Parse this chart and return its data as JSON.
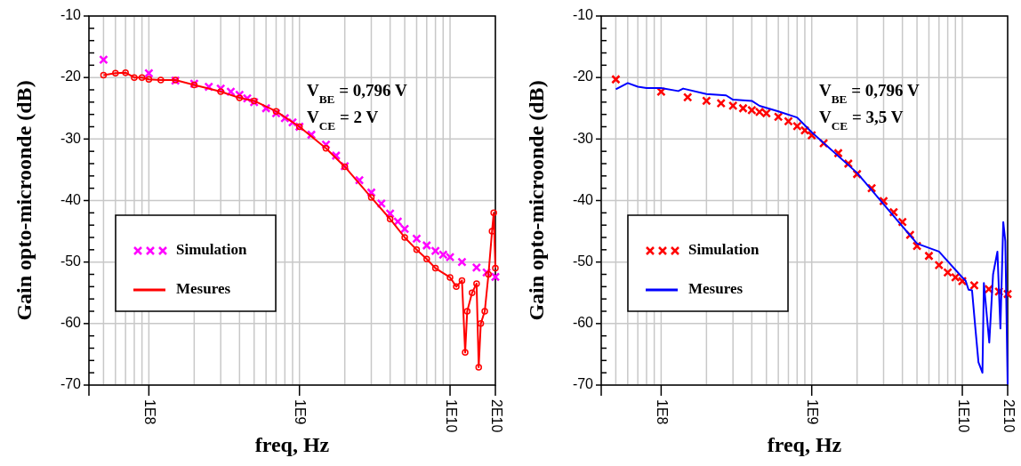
{
  "chart_data": [
    {
      "type": "line",
      "xlabel": "freq, Hz",
      "ylabel": "Gain opto-microonde (dB)",
      "log": "x",
      "grid": true,
      "legend": "left",
      "xlim": [
        40000000.0,
        20000000000.0
      ],
      "ylim": [
        -70,
        -10
      ],
      "xticks": [
        {
          "value": 100000000.0,
          "label": "1E8"
        },
        {
          "value": 1000000000.0,
          "label": "1E9"
        },
        {
          "value": 10000000000.0,
          "label": "1E10"
        },
        {
          "value": 20000000000.0,
          "label": "2E10"
        }
      ],
      "yticks": [
        -70,
        -60,
        -50,
        -40,
        -30,
        -20,
        -10
      ],
      "annotations": [
        "V$_{BE}$ = 0,796 V",
        "V$_{CE}$ = 2 V"
      ],
      "series": [
        {
          "name": "Simulation",
          "type": "scatter",
          "marker": "cross",
          "color": "#ff00ff",
          "x": [
            50000000.0,
            100000000.0,
            150000000.0,
            200000000.0,
            250000000.0,
            300000000.0,
            350000000.0,
            400000000.0,
            450000000.0,
            500000000.0,
            600000000.0,
            700000000.0,
            800000000.0,
            900000000.0,
            1000000000.0,
            1200000000.0,
            1500000000.0,
            1750000000.0,
            2000000000.0,
            2500000000.0,
            3000000000.0,
            3500000000.0,
            4000000000.0,
            4500000000.0,
            5000000000.0,
            6000000000.0,
            7000000000.0,
            8000000000.0,
            9000000000.0,
            10000000000.0,
            12000000000.0,
            15000000000.0,
            17500000000.0,
            20000000000.0
          ],
          "values": [
            -17.1,
            -19.3,
            -20.5,
            -21,
            -21.5,
            -21.8,
            -22.3,
            -22.8,
            -23.4,
            -24,
            -25,
            -25.8,
            -26.6,
            -27.3,
            -28,
            -29.3,
            -30.9,
            -32.7,
            -34.4,
            -36.7,
            -38.7,
            -40.5,
            -42.1,
            -43.4,
            -44.6,
            -46.2,
            -47.3,
            -48.2,
            -48.8,
            -49.2,
            -50,
            -50.9,
            -51.7,
            -52.4
          ]
        },
        {
          "name": "Mesures",
          "marker": "circle",
          "color": "#ff0000",
          "x": [
            50000000.0,
            60000000.0,
            70000000.0,
            80000000.0,
            90000000.0,
            100000000.0,
            120000000.0,
            150000000.0,
            200000000.0,
            300000000.0,
            400000000.0,
            500000000.0,
            700000000.0,
            1000000000.0,
            1500000000.0,
            2000000000.0,
            3000000000.0,
            4000000000.0,
            5000000000.0,
            6000000000.0,
            7000000000.0,
            8000000000.0,
            10000000000.0,
            11000000000.0,
            12000000000.0,
            12600000000.0,
            13000000000.0,
            14000000000.0,
            15000000000.0,
            15500000000.0,
            16000000000.0,
            17000000000.0,
            18000000000.0,
            19000000000.0,
            19500000000.0,
            20000000000.0
          ],
          "values": [
            -19.6,
            -19.3,
            -19.2,
            -20,
            -20,
            -20.3,
            -20.4,
            -20.4,
            -21.2,
            -22.3,
            -23.3,
            -23.8,
            -25.5,
            -28,
            -31.5,
            -34.5,
            -39.5,
            -43,
            -46,
            -48,
            -49.5,
            -51,
            -52.5,
            -54,
            -53,
            -64.7,
            -58,
            -55,
            -53.5,
            -67.1,
            -60,
            -58,
            -52,
            -45,
            -42,
            -51
          ]
        }
      ]
    },
    {
      "type": "line",
      "xlabel": "freq, Hz",
      "ylabel": "Gain opto-microonde (dB)",
      "log": "x",
      "grid": true,
      "legend": "left",
      "xlim": [
        40000000.0,
        20000000000.0
      ],
      "ylim": [
        -70,
        -10
      ],
      "xticks": [
        {
          "value": 100000000.0,
          "label": "1E8"
        },
        {
          "value": 1000000000.0,
          "label": "1E9"
        },
        {
          "value": 10000000000.0,
          "label": "1E10"
        },
        {
          "value": 20000000000.0,
          "label": "2E10"
        }
      ],
      "yticks": [
        -70,
        -60,
        -50,
        -40,
        -30,
        -20,
        -10
      ],
      "annotations": [
        "V$_{BE}$ = 0,796 V",
        "V$_{CE}$ = 3,5 V"
      ],
      "series": [
        {
          "name": "Simulation",
          "type": "scatter",
          "marker": "cross",
          "color": "#ff0000",
          "x": [
            50000000.0,
            100000000.0,
            150000000.0,
            200000000.0,
            250000000.0,
            300000000.0,
            350000000.0,
            400000000.0,
            450000000.0,
            500000000.0,
            600000000.0,
            700000000.0,
            800000000.0,
            900000000.0,
            1000000000.0,
            1200000000.0,
            1500000000.0,
            1750000000.0,
            2000000000.0,
            2500000000.0,
            3000000000.0,
            3500000000.0,
            4000000000.0,
            4500000000.0,
            5000000000.0,
            6000000000.0,
            7000000000.0,
            8000000000.0,
            9000000000.0,
            10000000000.0,
            12000000000.0,
            15000000000.0,
            17500000000.0,
            20000000000.0
          ],
          "values": [
            -20.3,
            -22.3,
            -23.2,
            -23.8,
            -24.2,
            -24.6,
            -25,
            -25.3,
            -25.6,
            -25.8,
            -26.4,
            -27.1,
            -27.9,
            -28.6,
            -29.4,
            -30.7,
            -32.3,
            -34,
            -35.7,
            -38,
            -40.1,
            -41.9,
            -43.5,
            -45.6,
            -47.4,
            -49,
            -50.5,
            -51.7,
            -52.5,
            -53.1,
            -53.8,
            -54.4,
            -54.8,
            -55.2
          ]
        },
        {
          "name": "Mesures",
          "marker": "none",
          "color": "#0000ff",
          "x": [
            50000000.0,
            60000000.0,
            70000000.0,
            80000000.0,
            100000000.0,
            130000000.0,
            140000000.0,
            200000000.0,
            270000000.0,
            300000000.0,
            400000000.0,
            450000000.0,
            600000000.0,
            800000000.0,
            1000000000.0,
            2000000000.0,
            5000000000.0,
            7000000000.0,
            10000000000.0,
            10500000000.0,
            11000000000.0,
            11600000000.0,
            12200000000.0,
            12800000000.0,
            13600000000.0,
            13900000000.0,
            15100000000.0,
            16000000000.0,
            17100000000.0,
            17900000000.0,
            18700000000.0,
            19300000000.0,
            20000000000.0
          ],
          "values": [
            -21.9,
            -20.9,
            -21.5,
            -21.7,
            -21.7,
            -22.2,
            -21.8,
            -22.7,
            -22.9,
            -23.6,
            -23.8,
            -24.6,
            -25.5,
            -26.5,
            -28.9,
            -35.5,
            -47,
            -48.3,
            -52.5,
            -53,
            -54.5,
            -54.6,
            -60.7,
            -66.3,
            -68,
            -53.4,
            -63.1,
            -52,
            -48.3,
            -60.8,
            -43.5,
            -46.6,
            -69.9
          ]
        }
      ]
    }
  ]
}
